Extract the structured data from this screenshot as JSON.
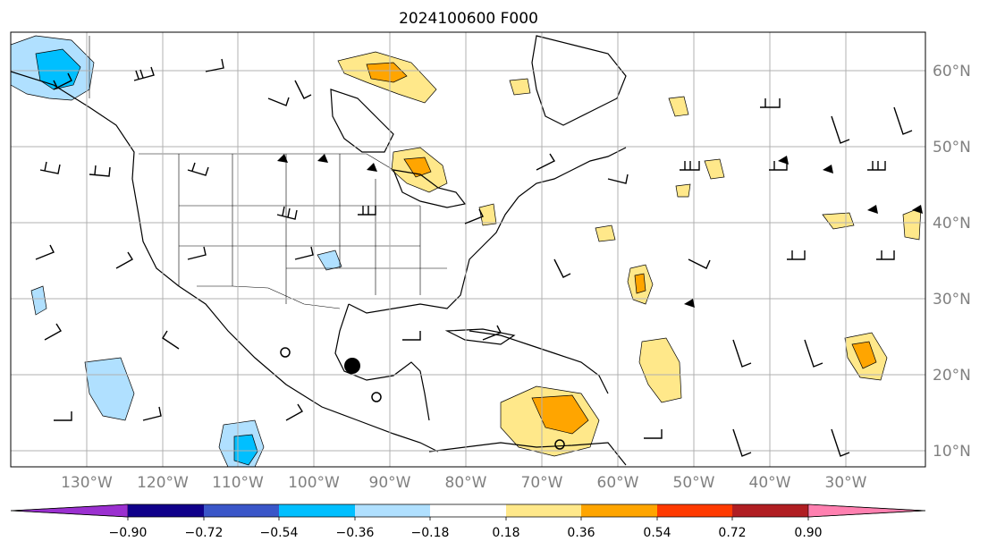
{
  "title": "2024100600 F000",
  "map": {
    "lon_labels": [
      "130°W",
      "120°W",
      "110°W",
      "100°W",
      "90°W",
      "80°W",
      "70°W",
      "60°W",
      "50°W",
      "40°W",
      "30°W"
    ],
    "lat_labels": [
      "60°N",
      "50°N",
      "40°N",
      "30°N",
      "20°N",
      "10°N"
    ],
    "gridlines": true,
    "features": [
      "coastlines",
      "US state borders",
      "country borders",
      "wind barbs",
      "filled contours"
    ],
    "markers": [
      {
        "name": "large-black-dot",
        "shape": "filled-circle"
      },
      {
        "name": "open-circle-gulf",
        "shape": "open-circle"
      },
      {
        "name": "open-circle-yucatan",
        "shape": "open-circle"
      },
      {
        "name": "open-circle-caribbean",
        "shape": "open-circle"
      }
    ]
  },
  "colorbar": {
    "ticks": [
      "−0.90",
      "−0.72",
      "−0.54",
      "−0.36",
      "−0.18",
      "0.18",
      "0.36",
      "0.54",
      "0.72",
      "0.90"
    ],
    "colors": [
      "#9b30d0",
      "#10008a",
      "#3a56c8",
      "#00bfff",
      "#b0e0ff",
      "#ffffff",
      "#ffe88a",
      "#ffa500",
      "#ff3a00",
      "#b01e22",
      "#ff80b0"
    ],
    "extend": "both"
  }
}
